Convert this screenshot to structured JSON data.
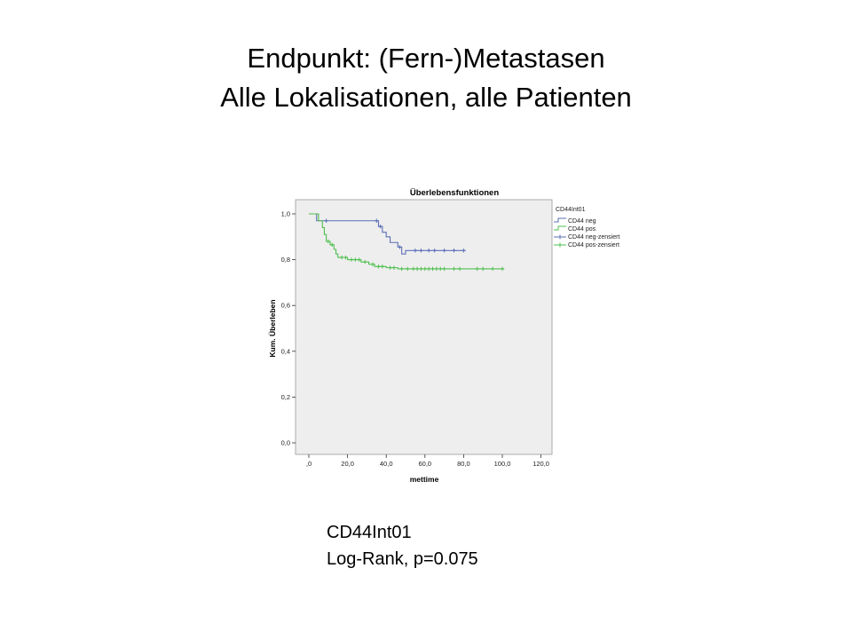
{
  "slide": {
    "title_line1": "Endpunkt: (Fern-)Metastasen",
    "title_line2": "Alle Lokalisationen, alle Patienten",
    "caption_line1": "CD44Int01",
    "caption_line2": "Log-Rank, p=0.075"
  },
  "chart_data": {
    "type": "line",
    "subtype": "kaplan-meier",
    "title": "Überlebensfunktionen",
    "xlabel": "mettime",
    "ylabel": "Kum. Überleben",
    "xlim": [
      0,
      125
    ],
    "ylim": [
      0,
      1.04
    ],
    "x_ticks": [
      0,
      20,
      40,
      60,
      80,
      100,
      120
    ],
    "x_tick_labels": [
      ",0",
      "20,0",
      "40,0",
      "60,0",
      "80,0",
      "100,0",
      "120,0"
    ],
    "y_ticks": [
      0,
      0.2,
      0.4,
      0.6,
      0.8,
      1.0
    ],
    "y_tick_labels": [
      "0,0",
      "0,2",
      "0,4",
      "0,6",
      "0,8",
      "1,0"
    ],
    "legend": {
      "title": "CD44Int01",
      "position": "right",
      "entries": [
        "CD44 neg",
        "CD44 pos",
        "CD44 neg-zensiert",
        "CD44 pos-zensiert"
      ]
    },
    "series": [
      {
        "name": "CD44 neg",
        "color": "#5b6fb6",
        "steps": [
          [
            0,
            1.0
          ],
          [
            4,
            0.97
          ],
          [
            36,
            0.945
          ],
          [
            38,
            0.92
          ],
          [
            40,
            0.9
          ],
          [
            42,
            0.875
          ],
          [
            46,
            0.855
          ],
          [
            48,
            0.825
          ],
          [
            50,
            0.84
          ]
        ],
        "end_x": 81,
        "censored": [
          [
            9,
            0.97
          ],
          [
            35,
            0.97
          ],
          [
            37,
            0.945
          ],
          [
            47,
            0.855
          ],
          [
            55,
            0.84
          ],
          [
            58,
            0.84
          ],
          [
            62,
            0.84
          ],
          [
            65,
            0.84
          ],
          [
            70,
            0.84
          ],
          [
            75,
            0.84
          ],
          [
            80,
            0.84
          ]
        ]
      },
      {
        "name": "CD44 pos",
        "color": "#4fbf4f",
        "steps": [
          [
            0,
            1.0
          ],
          [
            5,
            0.97
          ],
          [
            7,
            0.94
          ],
          [
            8,
            0.91
          ],
          [
            9,
            0.88
          ],
          [
            11,
            0.865
          ],
          [
            13,
            0.845
          ],
          [
            14,
            0.825
          ],
          [
            15,
            0.81
          ],
          [
            20,
            0.8
          ],
          [
            27,
            0.79
          ],
          [
            31,
            0.78
          ],
          [
            34,
            0.77
          ],
          [
            40,
            0.765
          ],
          [
            46,
            0.76
          ]
        ],
        "end_x": 101,
        "censored": [
          [
            10,
            0.88
          ],
          [
            12,
            0.865
          ],
          [
            17,
            0.81
          ],
          [
            19,
            0.81
          ],
          [
            22,
            0.8
          ],
          [
            24,
            0.8
          ],
          [
            26,
            0.8
          ],
          [
            29,
            0.79
          ],
          [
            33,
            0.78
          ],
          [
            36,
            0.77
          ],
          [
            38,
            0.77
          ],
          [
            42,
            0.765
          ],
          [
            44,
            0.765
          ],
          [
            48,
            0.76
          ],
          [
            51,
            0.76
          ],
          [
            54,
            0.76
          ],
          [
            56,
            0.76
          ],
          [
            58,
            0.76
          ],
          [
            60,
            0.76
          ],
          [
            62,
            0.76
          ],
          [
            64,
            0.76
          ],
          [
            66,
            0.76
          ],
          [
            68,
            0.76
          ],
          [
            70,
            0.76
          ],
          [
            75,
            0.76
          ],
          [
            78,
            0.76
          ],
          [
            87,
            0.76
          ],
          [
            90,
            0.76
          ],
          [
            95,
            0.76
          ],
          [
            100,
            0.76
          ]
        ]
      }
    ]
  }
}
